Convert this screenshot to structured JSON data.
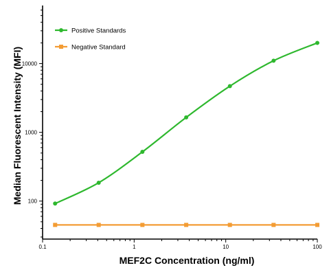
{
  "chart_data": {
    "type": "line",
    "xlabel": "MEF2C Concentration (ng/ml)",
    "ylabel": "Median Fluorescent Intensity (MFI)",
    "xscale": "log",
    "yscale": "log",
    "xlim": [
      0.1,
      100
    ],
    "ylim": [
      28,
      70000
    ],
    "x_ticks": [
      {
        "value": 0.1,
        "label": "0.1"
      },
      {
        "value": 1,
        "label": "1"
      },
      {
        "value": 10,
        "label": "10"
      },
      {
        "value": 100,
        "label": "100"
      }
    ],
    "y_ticks": [
      {
        "value": 100,
        "label": "100"
      },
      {
        "value": 1000,
        "label": "1000"
      },
      {
        "value": 10000,
        "label": "10000"
      }
    ],
    "grid": false,
    "legend_position": "top-left",
    "series": [
      {
        "name": "Positive Standards",
        "color": "#2eb82e",
        "x": [
          0.137,
          0.41,
          1.23,
          3.7,
          11.1,
          33.3,
          100
        ],
        "y": [
          92,
          185,
          520,
          1650,
          4700,
          11000,
          20000
        ]
      },
      {
        "name": "Negative Standard",
        "color": "#f39c34",
        "x": [
          0.137,
          0.41,
          1.23,
          3.7,
          11.1,
          33.3,
          100
        ],
        "y": [
          45,
          45,
          45,
          45,
          45,
          45,
          45
        ]
      }
    ]
  }
}
